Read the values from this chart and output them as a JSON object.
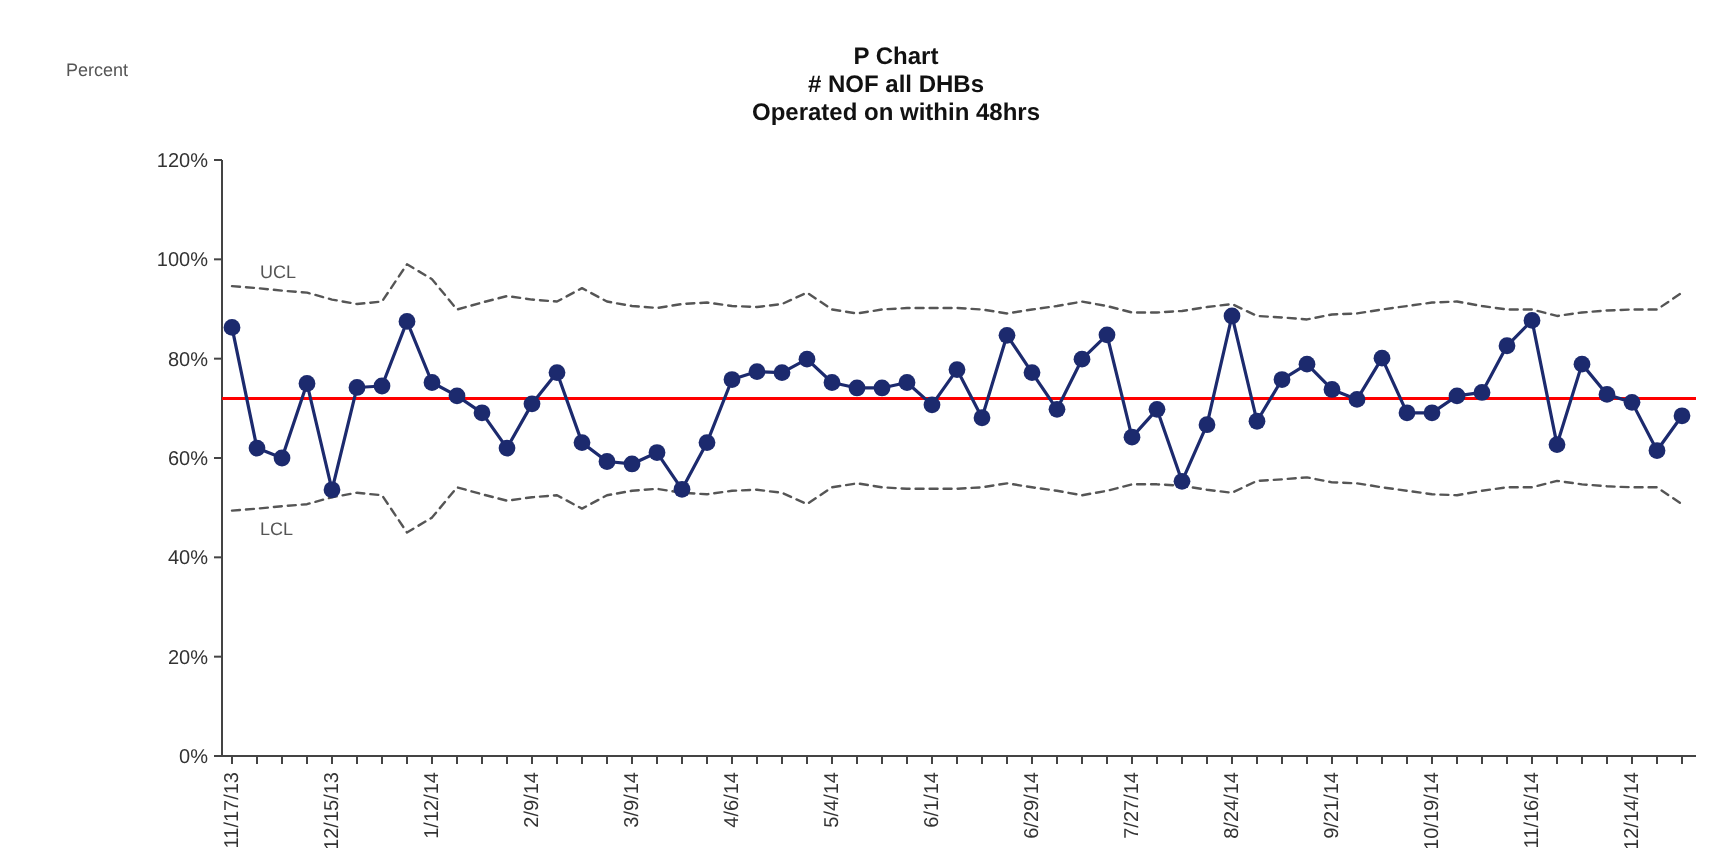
{
  "chart_data": {
    "type": "line",
    "title": "P Chart\n# NOF all DHBs\nOperated on within 48hrs",
    "ylabel": "Percent",
    "categories": [
      "11/17/13",
      null,
      null,
      null,
      "12/15/13",
      null,
      null,
      null,
      "1/12/14",
      null,
      null,
      null,
      "2/9/14",
      null,
      null,
      null,
      "3/9/14",
      null,
      null,
      null,
      "4/6/14",
      null,
      null,
      null,
      "5/4/14",
      null,
      null,
      null,
      "6/1/14",
      null,
      null,
      null,
      "6/29/14",
      null,
      null,
      null,
      "7/27/14",
      null,
      null,
      null,
      "8/24/14",
      null,
      null,
      null,
      "9/21/14",
      null,
      null,
      null,
      "10/19/14",
      null,
      null,
      null,
      "11/16/14",
      null,
      null,
      null,
      "12/14/14",
      null,
      null
    ],
    "ylim": [
      0,
      120
    ],
    "yticks": [
      {
        "value": 0,
        "label": "0%"
      },
      {
        "value": 20,
        "label": "20%"
      },
      {
        "value": 40,
        "label": "40%"
      },
      {
        "value": 60,
        "label": "60%"
      },
      {
        "value": 80,
        "label": "80%"
      },
      {
        "value": 100,
        "label": "100%"
      },
      {
        "value": 120,
        "label": "120%"
      }
    ],
    "grid": false,
    "ref_lines": [
      {
        "axis": "y",
        "value": 72,
        "color": "#ff0000"
      }
    ],
    "series": [
      {
        "name": "UCL",
        "color": "#555555",
        "line_style": "dashed",
        "marker": "none",
        "values": [
          94.6,
          94.2,
          93.7,
          93.3,
          91.9,
          91,
          91.5,
          99,
          96,
          89.9,
          91.3,
          92.6,
          91.9,
          91.5,
          94.2,
          91.5,
          90.6,
          90.2,
          91,
          91.3,
          90.6,
          90.4,
          91,
          93.3,
          89.9,
          89.1,
          89.9,
          90.2,
          90.2,
          90.2,
          89.9,
          89.1,
          89.9,
          90.6,
          91.5,
          90.6,
          89.3,
          89.3,
          89.6,
          90.4,
          91,
          88.6,
          88.3,
          87.9,
          88.9,
          89.1,
          89.9,
          90.6,
          91.3,
          91.5,
          90.6,
          89.9,
          89.9,
          88.6,
          89.3,
          89.7,
          89.9,
          89.9,
          93.3
        ]
      },
      {
        "name": "LCL",
        "color": "#555555",
        "line_style": "dashed",
        "marker": "none",
        "values": [
          49.4,
          49.8,
          50.3,
          50.7,
          52.1,
          53,
          52.5,
          45,
          48,
          54.1,
          52.7,
          51.4,
          52.1,
          52.5,
          49.8,
          52.5,
          53.4,
          53.8,
          53,
          52.7,
          53.4,
          53.6,
          53,
          50.7,
          54.1,
          54.9,
          54.1,
          53.8,
          53.8,
          53.8,
          54.1,
          54.9,
          54.1,
          53.4,
          52.5,
          53.4,
          54.7,
          54.7,
          54.4,
          53.6,
          53,
          55.4,
          55.7,
          56.1,
          55.1,
          54.9,
          54.1,
          53.4,
          52.7,
          52.5,
          53.4,
          54.1,
          54.1,
          55.4,
          54.7,
          54.3,
          54.1,
          54.1,
          50.7
        ]
      },
      {
        "color": "#1c2a6e",
        "line_style": "solid",
        "marker": "circle",
        "values": [
          86.3,
          62,
          60,
          75,
          53.6,
          74.2,
          74.5,
          87.5,
          75.2,
          72.5,
          69.1,
          62,
          70.9,
          77.2,
          63.1,
          59.3,
          58.8,
          61.1,
          53.7,
          63.1,
          75.8,
          77.4,
          77.2,
          79.9,
          75.2,
          74.1,
          74.1,
          75.2,
          70.7,
          77.8,
          68.1,
          84.7,
          77.2,
          69.8,
          79.9,
          84.8,
          64.2,
          69.8,
          55.3,
          66.7,
          88.6,
          67.4,
          75.8,
          78.9,
          73.8,
          71.8,
          80.1,
          69.1,
          69.1,
          72.5,
          73.2,
          82.6,
          87.7,
          62.7,
          78.9,
          72.8,
          71.2,
          61.5,
          68.5
        ]
      }
    ]
  }
}
